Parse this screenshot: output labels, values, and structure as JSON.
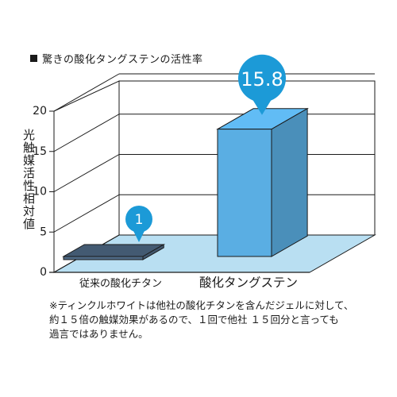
{
  "chart_data": {
    "type": "bar",
    "title": "驚きの酸化タングステンの活性率",
    "ylabel": "光触媒活性相対値",
    "xlabel": "",
    "ylim": [
      0,
      20
    ],
    "yticks": [
      "0",
      "5",
      "10",
      "15",
      "20"
    ],
    "categories": [
      "従来の酸化チタン",
      "酸化タングステン"
    ],
    "values": [
      1,
      15.8
    ],
    "data_labels": [
      "1",
      "15.8"
    ],
    "colors": {
      "bar_existing": "#4f6a86",
      "bar_tungsten": "#5aaee3",
      "callout": "#1c9ad7",
      "floor": "#b9dff2"
    }
  },
  "note": {
    "line1": "※ティンクルホワイトは他社の酸化チタンを含んだジェルに対して、",
    "line2": "約１５倍の触媒効果があるので、１回で他社 １５回分と言っても",
    "line3": "過言ではありません。"
  }
}
